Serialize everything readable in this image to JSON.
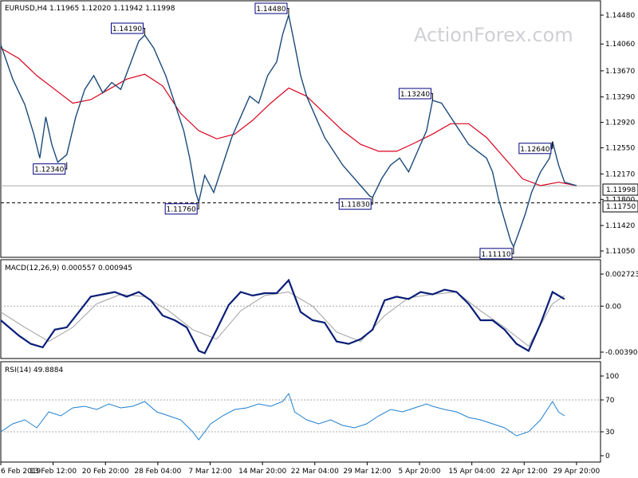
{
  "colors": {
    "price": "#1b4a7a",
    "ma": "#d9001b",
    "macd": "#0a1e78",
    "signal": "#a0a0a0",
    "rsi": "#1e7fd0",
    "border": "#000000",
    "hline": "#a9a9a9",
    "label_border": "#000080"
  },
  "chart_data": [
    {
      "type": "line",
      "title": "EURUSD,H4  1.11965 1.12020 1.11942 1.11998",
      "watermark": "ActionForex.com",
      "ylim": [
        1.1105,
        1.1448
      ],
      "y_ticks": [
        "1.14480",
        "1.14060",
        "1.13670",
        "1.13290",
        "1.12920",
        "1.12550",
        "1.12170",
        "1.11800",
        "1.11420",
        "1.11050"
      ],
      "x_ticks": [
        "6 Feb 2019",
        "13 Feb 12:00",
        "20 Feb 20:00",
        "28 Feb 04:00",
        "7 Mar 12:00",
        "14 Mar 20:00",
        "22 Mar 04:00",
        "29 Mar 12:00",
        "5 Apr 20:00",
        "15 Apr 04:00",
        "22 Apr 12:00",
        "29 Apr 20:00"
      ],
      "current_price_label": "1.11998",
      "current_price": 1.11998,
      "support_label": "1.11750",
      "support_level": 1.1175,
      "annotations": [
        {
          "x": 0.11,
          "y": 1.1234,
          "text": "1.12340"
        },
        {
          "x": 0.24,
          "y": 1.1419,
          "text": "1.14190"
        },
        {
          "x": 0.33,
          "y": 1.1176,
          "text": "1.11760"
        },
        {
          "x": 0.48,
          "y": 1.1448,
          "text": "1.14480"
        },
        {
          "x": 0.62,
          "y": 1.1183,
          "text": "1.11830"
        },
        {
          "x": 0.72,
          "y": 1.1324,
          "text": "1.13240"
        },
        {
          "x": 0.855,
          "y": 1.1111,
          "text": "1.11110"
        },
        {
          "x": 0.92,
          "y": 1.1264,
          "text": "1.12640"
        }
      ],
      "series": [
        {
          "values": [
            [
              0,
              1.1405
            ],
            [
              0.02,
              1.1355
            ],
            [
              0.04,
              1.1318
            ],
            [
              0.055,
              1.1275
            ],
            [
              0.065,
              1.124
            ],
            [
              0.075,
              1.13
            ],
            [
              0.085,
              1.126
            ],
            [
              0.095,
              1.1234
            ],
            [
              0.11,
              1.1245
            ],
            [
              0.125,
              1.13
            ],
            [
              0.14,
              1.134
            ],
            [
              0.155,
              1.136
            ],
            [
              0.17,
              1.1335
            ],
            [
              0.185,
              1.135
            ],
            [
              0.2,
              1.134
            ],
            [
              0.215,
              1.1375
            ],
            [
              0.23,
              1.141
            ],
            [
              0.24,
              1.1419
            ],
            [
              0.255,
              1.14
            ],
            [
              0.265,
              1.138
            ],
            [
              0.275,
              1.136
            ],
            [
              0.29,
              1.132
            ],
            [
              0.305,
              1.128
            ],
            [
              0.315,
              1.124
            ],
            [
              0.325,
              1.119
            ],
            [
              0.33,
              1.1176
            ],
            [
              0.34,
              1.1215
            ],
            [
              0.355,
              1.119
            ],
            [
              0.37,
              1.123
            ],
            [
              0.385,
              1.127
            ],
            [
              0.4,
              1.13
            ],
            [
              0.415,
              1.133
            ],
            [
              0.43,
              1.132
            ],
            [
              0.445,
              1.136
            ],
            [
              0.46,
              1.138
            ],
            [
              0.47,
              1.142
            ],
            [
              0.48,
              1.1448
            ],
            [
              0.49,
              1.1405
            ],
            [
              0.5,
              1.136
            ],
            [
              0.51,
              1.133
            ],
            [
              0.525,
              1.13
            ],
            [
              0.54,
              1.127
            ],
            [
              0.555,
              1.125
            ],
            [
              0.57,
              1.123
            ],
            [
              0.585,
              1.1215
            ],
            [
              0.6,
              1.12
            ],
            [
              0.615,
              1.1185
            ],
            [
              0.62,
              1.1183
            ],
            [
              0.635,
              1.121
            ],
            [
              0.65,
              1.123
            ],
            [
              0.665,
              1.124
            ],
            [
              0.68,
              1.122
            ],
            [
              0.695,
              1.125
            ],
            [
              0.71,
              1.128
            ],
            [
              0.72,
              1.1324
            ],
            [
              0.735,
              1.132
            ],
            [
              0.75,
              1.13
            ],
            [
              0.765,
              1.128
            ],
            [
              0.78,
              1.126
            ],
            [
              0.795,
              1.125
            ],
            [
              0.81,
              1.124
            ],
            [
              0.82,
              1.122
            ],
            [
              0.83,
              1.118
            ],
            [
              0.84,
              1.115
            ],
            [
              0.85,
              1.112
            ],
            [
              0.855,
              1.1111
            ],
            [
              0.865,
              1.1135
            ],
            [
              0.875,
              1.116
            ],
            [
              0.885,
              1.119
            ],
            [
              0.9,
              1.122
            ],
            [
              0.915,
              1.124
            ],
            [
              0.92,
              1.1264
            ],
            [
              0.93,
              1.123
            ],
            [
              0.94,
              1.1205
            ],
            [
              0.96,
              1.12
            ]
          ]
        },
        {
          "values": [
            [
              0,
              1.14
            ],
            [
              0.03,
              1.1385
            ],
            [
              0.06,
              1.136
            ],
            [
              0.09,
              1.134
            ],
            [
              0.12,
              1.132
            ],
            [
              0.15,
              1.1325
            ],
            [
              0.18,
              1.134
            ],
            [
              0.21,
              1.1355
            ],
            [
              0.24,
              1.1362
            ],
            [
              0.27,
              1.1345
            ],
            [
              0.3,
              1.1305
            ],
            [
              0.33,
              1.128
            ],
            [
              0.36,
              1.1268
            ],
            [
              0.39,
              1.1275
            ],
            [
              0.42,
              1.1295
            ],
            [
              0.45,
              1.132
            ],
            [
              0.48,
              1.1342
            ],
            [
              0.51,
              1.133
            ],
            [
              0.54,
              1.1305
            ],
            [
              0.57,
              1.128
            ],
            [
              0.6,
              1.126
            ],
            [
              0.63,
              1.125
            ],
            [
              0.66,
              1.125
            ],
            [
              0.69,
              1.1262
            ],
            [
              0.72,
              1.1275
            ],
            [
              0.75,
              1.129
            ],
            [
              0.78,
              1.129
            ],
            [
              0.81,
              1.127
            ],
            [
              0.84,
              1.124
            ],
            [
              0.87,
              1.121
            ],
            [
              0.9,
              1.12
            ],
            [
              0.93,
              1.1205
            ],
            [
              0.96,
              1.12
            ]
          ]
        }
      ]
    },
    {
      "type": "line",
      "title": "MACD(12,26,9) 0.000557 0.000945",
      "ylim": [
        -0.003905,
        0.002723
      ],
      "y_ticks": [
        "0.002723",
        "0.00",
        "-0.003905"
      ],
      "series": [
        {
          "values": [
            [
              0,
              -0.0012
            ],
            [
              0.03,
              -0.0025
            ],
            [
              0.05,
              -0.0032
            ],
            [
              0.07,
              -0.0035
            ],
            [
              0.09,
              -0.002
            ],
            [
              0.11,
              -0.0018
            ],
            [
              0.13,
              -0.0005
            ],
            [
              0.15,
              0.0008
            ],
            [
              0.17,
              0.001
            ],
            [
              0.19,
              0.0012
            ],
            [
              0.21,
              0.0008
            ],
            [
              0.23,
              0.0012
            ],
            [
              0.25,
              0.0005
            ],
            [
              0.27,
              -0.0008
            ],
            [
              0.29,
              -0.0012
            ],
            [
              0.31,
              -0.0018
            ],
            [
              0.33,
              -0.0038
            ],
            [
              0.34,
              -0.004
            ],
            [
              0.36,
              -0.002
            ],
            [
              0.38,
              0.0001
            ],
            [
              0.4,
              0.0012
            ],
            [
              0.42,
              0.0009
            ],
            [
              0.44,
              0.0011
            ],
            [
              0.46,
              0.0011
            ],
            [
              0.48,
              0.0022
            ],
            [
              0.5,
              -0.0005
            ],
            [
              0.52,
              -0.0012
            ],
            [
              0.54,
              -0.0014
            ],
            [
              0.56,
              -0.003
            ],
            [
              0.58,
              -0.0032
            ],
            [
              0.6,
              -0.0028
            ],
            [
              0.62,
              -0.002
            ],
            [
              0.64,
              0.0005
            ],
            [
              0.66,
              0.0008
            ],
            [
              0.68,
              0.0006
            ],
            [
              0.7,
              0.0012
            ],
            [
              0.72,
              0.001
            ],
            [
              0.74,
              0.0014
            ],
            [
              0.76,
              0.0012
            ],
            [
              0.78,
              0.0002
            ],
            [
              0.8,
              -0.0012
            ],
            [
              0.82,
              -0.0012
            ],
            [
              0.84,
              -0.002
            ],
            [
              0.86,
              -0.0032
            ],
            [
              0.88,
              -0.0038
            ],
            [
              0.9,
              -0.0015
            ],
            [
              0.92,
              0.0012
            ],
            [
              0.94,
              0.0006
            ]
          ]
        },
        {
          "values": [
            [
              0,
              -0.0005
            ],
            [
              0.04,
              -0.0018
            ],
            [
              0.08,
              -0.003
            ],
            [
              0.12,
              -0.0018
            ],
            [
              0.16,
              0.0002
            ],
            [
              0.2,
              0.001
            ],
            [
              0.24,
              0.0008
            ],
            [
              0.28,
              -0.0004
            ],
            [
              0.32,
              -0.002
            ],
            [
              0.36,
              -0.0028
            ],
            [
              0.4,
              -0.0004
            ],
            [
              0.44,
              0.0009
            ],
            [
              0.48,
              0.0012
            ],
            [
              0.52,
              0.0
            ],
            [
              0.56,
              -0.0022
            ],
            [
              0.6,
              -0.003
            ],
            [
              0.64,
              -0.0008
            ],
            [
              0.68,
              0.0007
            ],
            [
              0.72,
              0.001
            ],
            [
              0.76,
              0.0012
            ],
            [
              0.8,
              -0.0004
            ],
            [
              0.84,
              -0.0018
            ],
            [
              0.88,
              -0.0034
            ],
            [
              0.92,
              0.0002
            ],
            [
              0.94,
              0.0009
            ]
          ]
        }
      ]
    },
    {
      "type": "line",
      "title": "RSI(14) 49.8884",
      "ylim": [
        0,
        100
      ],
      "y_ticks": [
        "100",
        "70",
        "30",
        "0"
      ],
      "reference_levels": [
        70,
        30
      ],
      "series": [
        {
          "values": [
            [
              0,
              30
            ],
            [
              0.02,
              40
            ],
            [
              0.04,
              45
            ],
            [
              0.06,
              35
            ],
            [
              0.08,
              55
            ],
            [
              0.1,
              50
            ],
            [
              0.12,
              60
            ],
            [
              0.14,
              62
            ],
            [
              0.16,
              58
            ],
            [
              0.18,
              65
            ],
            [
              0.2,
              60
            ],
            [
              0.22,
              62
            ],
            [
              0.24,
              68
            ],
            [
              0.26,
              55
            ],
            [
              0.28,
              50
            ],
            [
              0.3,
              45
            ],
            [
              0.32,
              30
            ],
            [
              0.33,
              20
            ],
            [
              0.35,
              40
            ],
            [
              0.37,
              50
            ],
            [
              0.39,
              58
            ],
            [
              0.41,
              60
            ],
            [
              0.43,
              65
            ],
            [
              0.45,
              62
            ],
            [
              0.47,
              68
            ],
            [
              0.48,
              78
            ],
            [
              0.49,
              55
            ],
            [
              0.51,
              45
            ],
            [
              0.53,
              40
            ],
            [
              0.55,
              45
            ],
            [
              0.57,
              38
            ],
            [
              0.59,
              35
            ],
            [
              0.61,
              40
            ],
            [
              0.63,
              50
            ],
            [
              0.65,
              58
            ],
            [
              0.67,
              55
            ],
            [
              0.69,
              60
            ],
            [
              0.71,
              65
            ],
            [
              0.72,
              62
            ],
            [
              0.74,
              58
            ],
            [
              0.76,
              55
            ],
            [
              0.78,
              48
            ],
            [
              0.8,
              45
            ],
            [
              0.82,
              40
            ],
            [
              0.84,
              35
            ],
            [
              0.86,
              25
            ],
            [
              0.88,
              30
            ],
            [
              0.9,
              45
            ],
            [
              0.92,
              68
            ],
            [
              0.93,
              55
            ],
            [
              0.94,
              50
            ]
          ]
        }
      ]
    }
  ]
}
